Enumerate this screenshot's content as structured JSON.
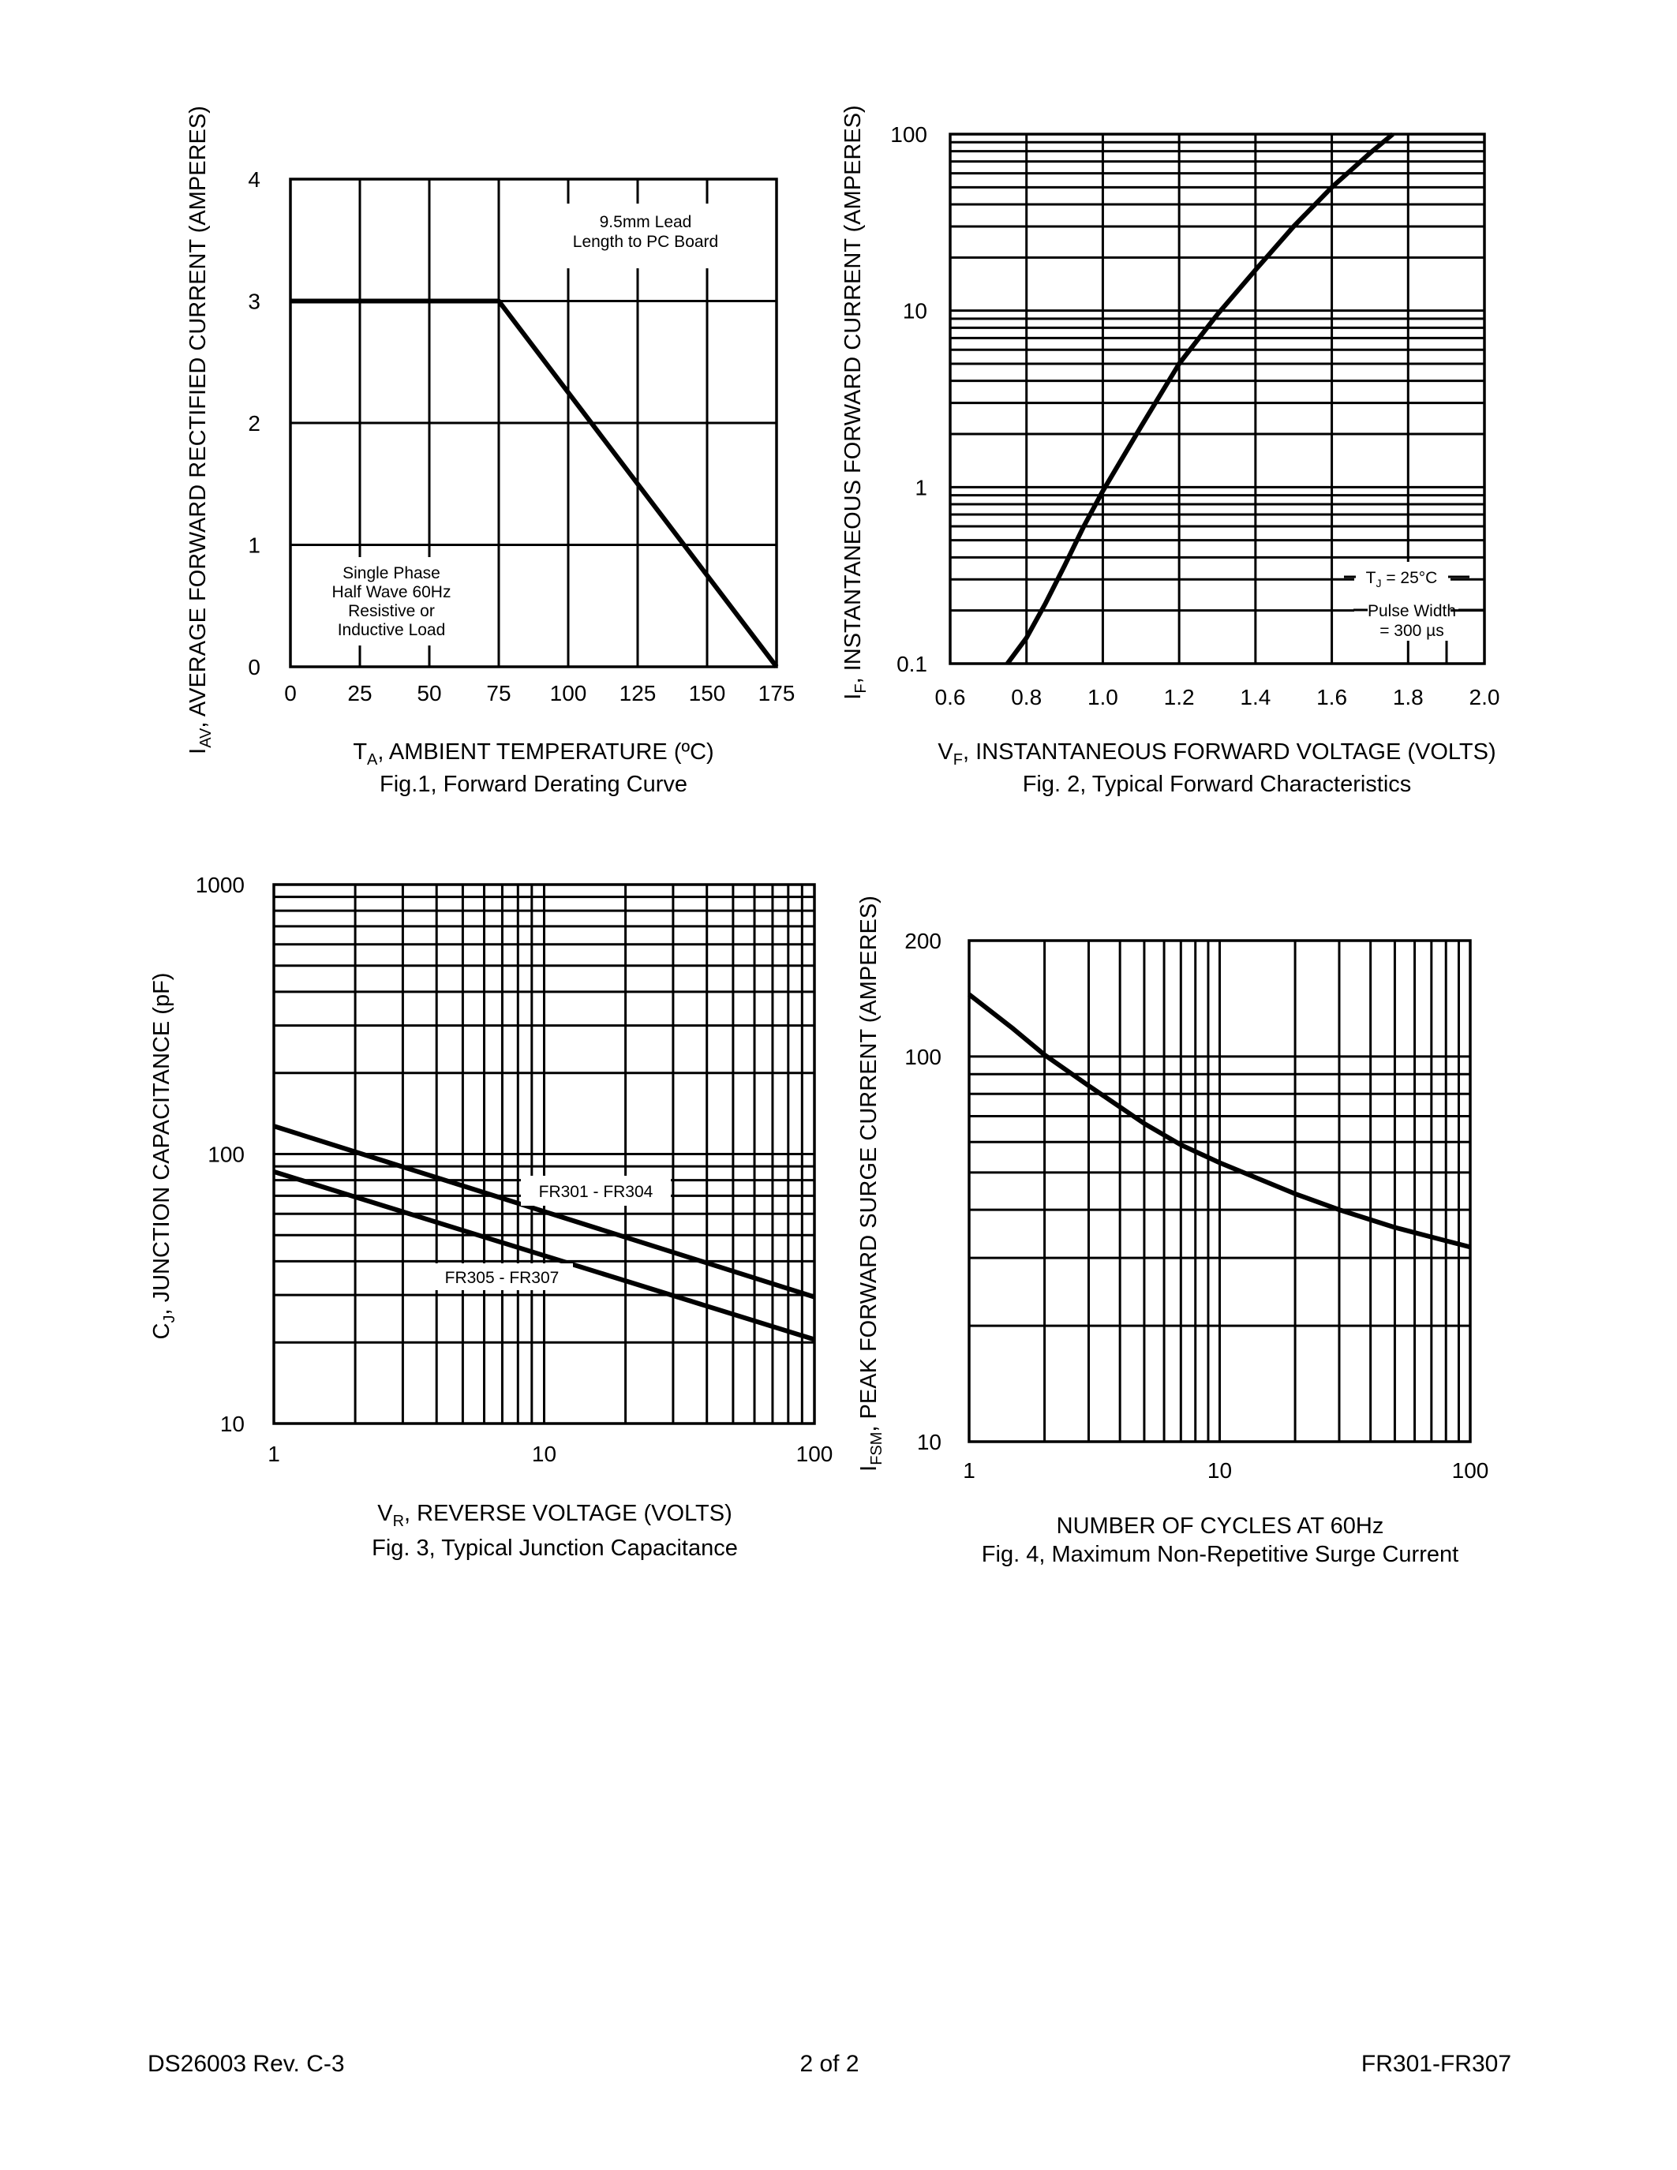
{
  "footer": {
    "left": "DS26003 Rev. C-3",
    "center": "2 of 2",
    "right": "FR301-FR307"
  },
  "chart_data": [
    {
      "type": "line",
      "caption": "Fig.1,  Forward Derating Curve",
      "xlabel": {
        "symbol": "T",
        "sub": "A",
        "text": ", AMBIENT TEMPERATURE (ºC)"
      },
      "ylabel": {
        "symbol": "I",
        "sub": "AV",
        "text": ", AVERAGE FORWARD RECTIFIED CURRENT (AMPERES)"
      },
      "xscale": "linear",
      "yscale": "linear",
      "xlim": [
        0,
        175
      ],
      "ylim": [
        0,
        4
      ],
      "xticks": [
        0,
        25,
        50,
        75,
        100,
        125,
        150,
        175
      ],
      "xtick_labels": [
        "0",
        "25",
        "50",
        "75",
        "100",
        "125",
        "150",
        "175"
      ],
      "yticks": [
        0,
        1,
        2,
        3,
        4
      ],
      "ytick_labels": [
        "0",
        "1",
        "2",
        "3",
        "4"
      ],
      "grid": true,
      "series": [
        {
          "x": [
            0,
            75,
            175
          ],
          "y": [
            3,
            3,
            0
          ]
        }
      ],
      "annotations": [
        [
          "9.5mm Lead",
          "Length to PC Board"
        ],
        [
          "Single Phase",
          "Half Wave 60Hz",
          "Resistive or",
          "Inductive Load"
        ]
      ]
    },
    {
      "type": "line",
      "caption": "Fig. 2,  Typical Forward Characteristics",
      "xlabel": {
        "symbol": "V",
        "sub": "F",
        "text": ", INSTANTANEOUS FORWARD VOLTAGE (VOLTS)"
      },
      "ylabel": {
        "symbol": "I",
        "sub": "F",
        "text": ", INSTANTANEOUS FORWARD CURRENT (AMPERES)"
      },
      "xscale": "linear",
      "yscale": "log",
      "xlim": [
        0.6,
        2.0
      ],
      "ylim": [
        0.1,
        100
      ],
      "xticks": [
        0.6,
        0.8,
        1.0,
        1.2,
        1.4,
        1.6,
        1.8,
        2.0
      ],
      "xtick_labels": [
        "0.6",
        "0.8",
        "1.0",
        "1.2",
        "1.4",
        "1.6",
        "1.8",
        "2.0"
      ],
      "yticks": [
        0.1,
        1,
        10,
        100
      ],
      "ytick_labels": [
        "0.1",
        "1",
        "10",
        "100"
      ],
      "grid": true,
      "series": [
        {
          "x": [
            0.75,
            0.8,
            0.85,
            0.9,
            0.95,
            1.0,
            1.1,
            1.2,
            1.3,
            1.4,
            1.5,
            1.6,
            1.7,
            1.76
          ],
          "y": [
            0.1,
            0.14,
            0.22,
            0.36,
            0.6,
            0.95,
            2.2,
            5,
            9.5,
            17,
            30,
            50,
            78,
            100
          ]
        }
      ],
      "annotations": {
        "tj_symbol": "T",
        "tj_sub": "J",
        "tj_text": " = 25°C",
        "pulse": [
          "Pulse Width",
          "= 300 µs"
        ]
      }
    },
    {
      "type": "line",
      "caption": "Fig. 3,  Typical Junction Capacitance",
      "xlabel": {
        "symbol": "V",
        "sub": "R",
        "text": ", REVERSE VOLTAGE (VOLTS)"
      },
      "ylabel": {
        "symbol": "C",
        "sub": "J",
        "text": ", JUNCTION CAPACITANCE (pF)"
      },
      "xscale": "log",
      "yscale": "log",
      "xlim": [
        1,
        100
      ],
      "ylim": [
        10,
        1000
      ],
      "xticks": [
        1,
        10,
        100
      ],
      "xtick_labels": [
        "1",
        "10",
        "100"
      ],
      "yticks": [
        10,
        100,
        1000
      ],
      "ytick_labels": [
        "10",
        "100",
        "1000"
      ],
      "grid": true,
      "series": [
        {
          "name": "FR301 - FR304",
          "x": [
            1,
            100
          ],
          "y": [
            127,
            29.5
          ]
        },
        {
          "name": "FR305 - FR307",
          "x": [
            1,
            100
          ],
          "y": [
            86,
            20.5
          ]
        }
      ]
    },
    {
      "type": "line",
      "caption": "Fig. 4,  Maximum Non-Repetitive Surge Current",
      "xlabel": {
        "symbol": "",
        "sub": "",
        "text": "NUMBER OF CYCLES AT 60Hz"
      },
      "ylabel": {
        "symbol": "I",
        "sub": "FSM",
        "text": ", PEAK FORWARD SURGE CURRENT (AMPERES)"
      },
      "xscale": "log",
      "yscale": "log",
      "xlim": [
        1,
        100
      ],
      "ylim": [
        10,
        200
      ],
      "xticks": [
        1,
        10,
        100
      ],
      "xtick_labels": [
        "1",
        "10",
        "100"
      ],
      "yticks": [
        10,
        100,
        200
      ],
      "ytick_labels": [
        "10",
        "100",
        "200"
      ],
      "grid": true,
      "series": [
        {
          "x": [
            1,
            1.5,
            2,
            3,
            5,
            7,
            10,
            20,
            30,
            50,
            70,
            100
          ],
          "y": [
            145,
            118,
            101,
            84,
            67,
            59,
            53,
            44,
            40,
            36,
            34,
            32
          ]
        }
      ]
    }
  ]
}
